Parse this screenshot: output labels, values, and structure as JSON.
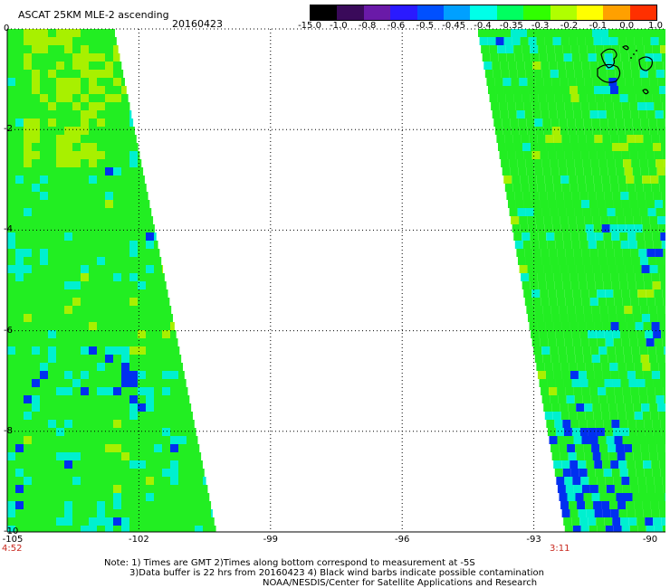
{
  "header": {
    "title": "ASCAT 25KM MLE-2 ascending",
    "date": "20160423"
  },
  "colorbar": {
    "labels": [
      "-15.0",
      "-1.0",
      "-0.8",
      "-0.6",
      "-0.5",
      "-0.45",
      "-0.4",
      "-0.35",
      "-0.3",
      "-0.2",
      "-0.1",
      "0.0",
      "1.0"
    ],
    "colors": [
      "#000000",
      "#3a0a5a",
      "#6a1aa8",
      "#2a1aff",
      "#0050ff",
      "#00a0ff",
      "#00ffe8",
      "#00ff60",
      "#30ff00",
      "#b0ff00",
      "#ffff00",
      "#ffa000",
      "#ff3000"
    ]
  },
  "axes": {
    "lon_ticks": [
      "-105",
      "-102",
      "-99",
      "-96",
      "-93",
      "-90"
    ],
    "lat_ticks": [
      "0",
      "-2",
      "-4",
      "-6",
      "-8",
      "-10"
    ],
    "lon_range": [
      -105,
      -90
    ],
    "lat_range": [
      -10,
      0
    ]
  },
  "times": {
    "left": "4:52",
    "right": "3:11"
  },
  "colors": {
    "swath_green": "#22ee22",
    "swath_yellowgreen": "#a8f000",
    "swath_cyan": "#00f0d0",
    "swath_blue": "#0030f0",
    "time_label": "#c8281e"
  },
  "notes": {
    "line1": "Note: 1) Times are GMT 2)Times along bottom correspond to measurement at -5S",
    "line2": "3)Data buffer is 22 hrs from 20160423 4) Black wind barbs indicate possible contamination",
    "line3": "NOAA/NESDIS/Center for Satellite Applications and Research"
  }
}
